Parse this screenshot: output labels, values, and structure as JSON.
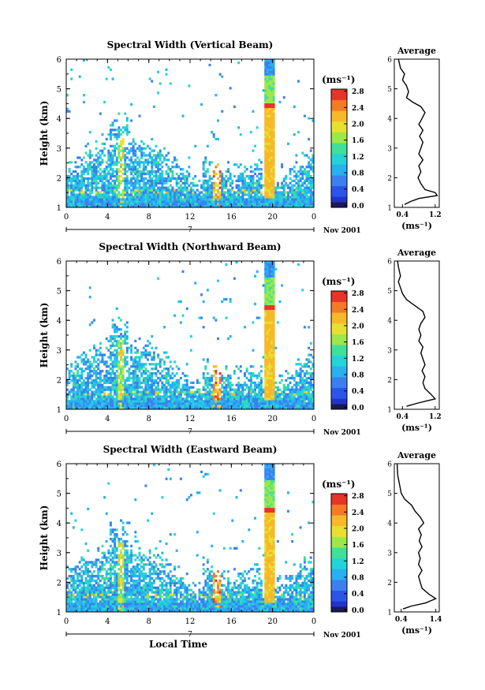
{
  "chart_data": [
    {
      "type": "heatmap",
      "title": "Spectral Width (Vertical Beam)",
      "ylabel": "Height (km)",
      "ylim": [
        1,
        6
      ],
      "yticks": [
        "1",
        "2",
        "3",
        "4",
        "5",
        "6"
      ],
      "xlim": [
        0,
        24
      ],
      "xticks": [
        "0",
        "4",
        "8",
        "12",
        "16",
        "20",
        "0"
      ],
      "date_day": "7",
      "date_month": "Nov 2001",
      "colorbar_unit": "(ms⁻¹)",
      "colorbar_range": [
        0.0,
        2.9
      ],
      "colorbar_ticks": [
        "0.0",
        "0.4",
        "0.8",
        "1.2",
        "1.6",
        "2.0",
        "2.4",
        "2.8"
      ],
      "average": {
        "title": "Average",
        "xlabel": "(ms⁻¹)",
        "xticks": [
          "0.4",
          "1.2"
        ],
        "xlim": [
          0.2,
          1.3
        ],
        "profile": [
          [
            0.45,
            1.1
          ],
          [
            0.6,
            1.2
          ],
          [
            0.8,
            1.3
          ],
          [
            1.25,
            1.4
          ],
          [
            1.2,
            1.5
          ],
          [
            0.95,
            1.6
          ],
          [
            0.85,
            1.8
          ],
          [
            0.78,
            2.0
          ],
          [
            0.85,
            2.2
          ],
          [
            0.8,
            2.4
          ],
          [
            0.9,
            2.6
          ],
          [
            0.8,
            2.8
          ],
          [
            0.85,
            3.0
          ],
          [
            0.9,
            3.2
          ],
          [
            0.82,
            3.4
          ],
          [
            0.9,
            3.6
          ],
          [
            0.8,
            3.8
          ],
          [
            0.88,
            4.0
          ],
          [
            0.95,
            4.2
          ],
          [
            0.85,
            4.4
          ],
          [
            0.65,
            4.55
          ],
          [
            0.5,
            4.7
          ],
          [
            0.55,
            4.9
          ],
          [
            0.5,
            5.1
          ],
          [
            0.4,
            5.3
          ],
          [
            0.45,
            5.5
          ],
          [
            0.35,
            5.7
          ],
          [
            0.3,
            6.0
          ]
        ]
      }
    },
    {
      "type": "heatmap",
      "title": "Spectral Width (Northward Beam)",
      "ylabel": "Height (km)",
      "ylim": [
        1,
        6
      ],
      "yticks": [
        "1",
        "2",
        "3",
        "4",
        "5",
        "6"
      ],
      "xlim": [
        0,
        24
      ],
      "xticks": [
        "0",
        "4",
        "8",
        "12",
        "16",
        "20",
        "0"
      ],
      "date_day": "7",
      "date_month": "Nov 2001",
      "colorbar_unit": "(ms⁻¹)",
      "colorbar_range": [
        0.0,
        2.9
      ],
      "colorbar_ticks": [
        "0.0",
        "0.4",
        "0.8",
        "1.2",
        "1.6",
        "2.0",
        "2.4",
        "2.8"
      ],
      "average": {
        "title": "Average",
        "xlabel": "(ms⁻¹)",
        "xticks": [
          "0.4",
          "1.2"
        ],
        "xlim": [
          0.2,
          1.3
        ],
        "profile": [
          [
            0.5,
            1.1
          ],
          [
            0.75,
            1.2
          ],
          [
            1.2,
            1.35
          ],
          [
            1.1,
            1.5
          ],
          [
            0.95,
            1.7
          ],
          [
            0.9,
            1.9
          ],
          [
            0.95,
            2.1
          ],
          [
            0.88,
            2.3
          ],
          [
            0.95,
            2.5
          ],
          [
            0.9,
            2.7
          ],
          [
            0.85,
            2.9
          ],
          [
            0.9,
            3.1
          ],
          [
            0.8,
            3.3
          ],
          [
            0.85,
            3.5
          ],
          [
            0.8,
            3.7
          ],
          [
            0.85,
            3.9
          ],
          [
            0.95,
            4.1
          ],
          [
            0.9,
            4.3
          ],
          [
            0.7,
            4.5
          ],
          [
            0.5,
            4.7
          ],
          [
            0.4,
            4.9
          ],
          [
            0.35,
            5.1
          ],
          [
            0.3,
            5.3
          ],
          [
            0.35,
            5.5
          ],
          [
            0.3,
            5.8
          ],
          [
            0.28,
            6.0
          ]
        ]
      }
    },
    {
      "type": "heatmap",
      "title": "Spectral Width (Eastward Beam)",
      "ylabel": "Height (km)",
      "xlabel": "Local Time",
      "ylim": [
        1,
        6
      ],
      "yticks": [
        "1",
        "2",
        "3",
        "4",
        "5",
        "6"
      ],
      "xlim": [
        0,
        24
      ],
      "xticks": [
        "0",
        "4",
        "8",
        "12",
        "16",
        "20",
        "0"
      ],
      "date_day": "7",
      "date_month": "Nov 2001",
      "colorbar_unit": "(ms⁻¹)",
      "colorbar_range": [
        0.0,
        2.9
      ],
      "colorbar_ticks": [
        "0.0",
        "0.4",
        "0.8",
        "1.2",
        "1.6",
        "2.0",
        "2.4",
        "2.8"
      ],
      "average": {
        "title": "Average",
        "xlabel": "(ms⁻¹)",
        "xticks": [
          "0.4",
          "1.4"
        ],
        "xlim": [
          0.2,
          1.5
        ],
        "profile": [
          [
            0.45,
            1.1
          ],
          [
            0.7,
            1.2
          ],
          [
            1.1,
            1.3
          ],
          [
            1.4,
            1.45
          ],
          [
            1.2,
            1.6
          ],
          [
            1.0,
            1.8
          ],
          [
            0.95,
            2.0
          ],
          [
            0.9,
            2.2
          ],
          [
            1.0,
            2.4
          ],
          [
            0.9,
            2.6
          ],
          [
            0.95,
            2.8
          ],
          [
            0.9,
            3.0
          ],
          [
            1.0,
            3.2
          ],
          [
            0.92,
            3.4
          ],
          [
            0.98,
            3.6
          ],
          [
            0.9,
            3.8
          ],
          [
            1.05,
            4.0
          ],
          [
            0.95,
            4.2
          ],
          [
            0.8,
            4.4
          ],
          [
            0.7,
            4.6
          ],
          [
            0.5,
            4.8
          ],
          [
            0.4,
            5.0
          ],
          [
            0.35,
            5.3
          ],
          [
            0.3,
            5.6
          ],
          [
            0.28,
            6.0
          ]
        ]
      }
    }
  ]
}
